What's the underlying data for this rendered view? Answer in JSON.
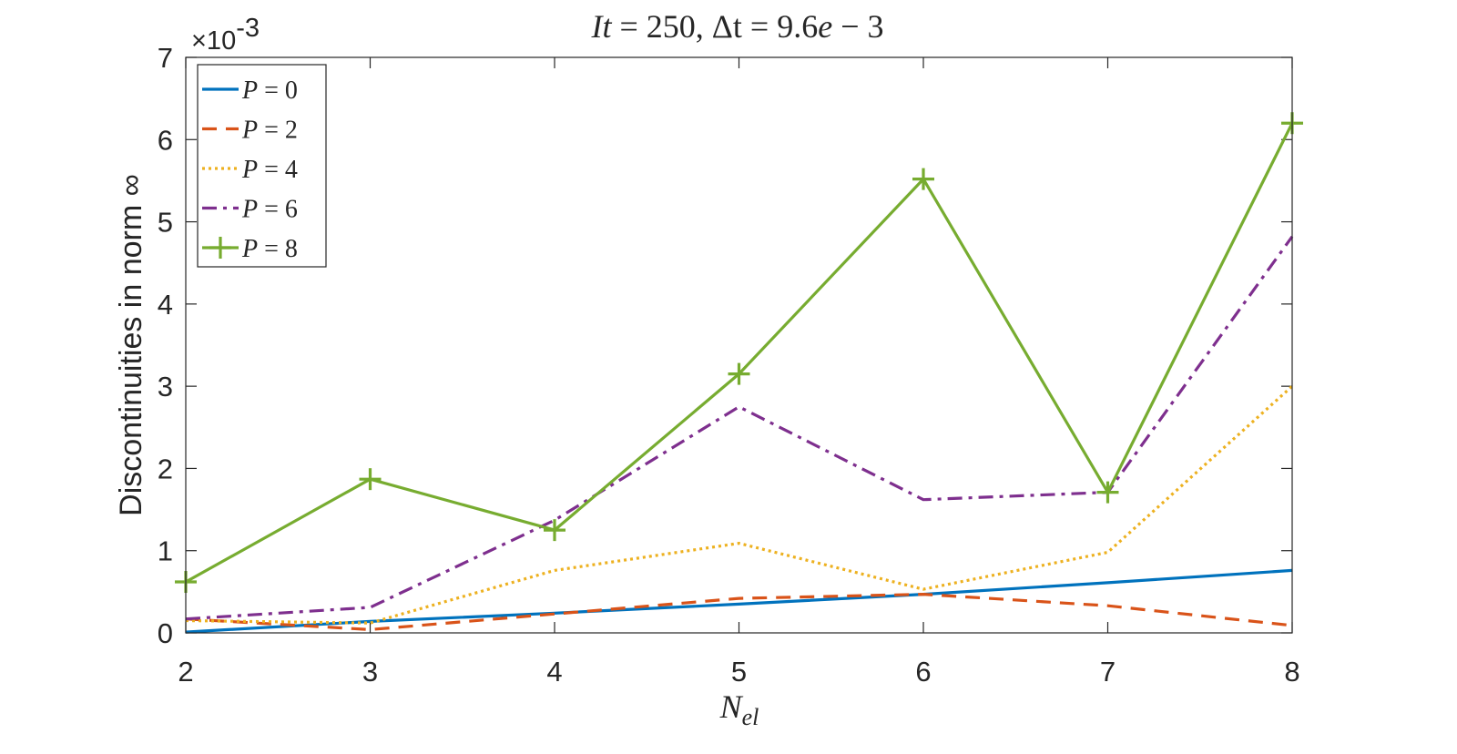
{
  "chart_data": {
    "type": "line",
    "title": {
      "part1_var": "It",
      "part1_eq": " = 250, ",
      "part2_var": "Δt",
      "part2_eq": " = 9.6",
      "part2_e": "e",
      "part2_tail": " − 3"
    },
    "xlabel": {
      "base": "N",
      "sub": "el"
    },
    "ylabel": "Discontinuities in norm ∞",
    "y_exponent": {
      "prefix": "×10",
      "power": "-3"
    },
    "xlim": [
      2,
      8
    ],
    "ylim": [
      0,
      7
    ],
    "x_ticks": [
      "2",
      "3",
      "4",
      "5",
      "6",
      "7",
      "8"
    ],
    "y_ticks": [
      "0",
      "1",
      "2",
      "3",
      "4",
      "5",
      "6",
      "7"
    ],
    "x": [
      2,
      3,
      4,
      5,
      6,
      7,
      8
    ],
    "y_scale": "1e-3",
    "grid": false,
    "legend_position": "top-left",
    "series": [
      {
        "name": "P = 0",
        "legend_var": "P",
        "legend_eq": " = 0",
        "color": "#0072BD",
        "dash": "solid",
        "marker": "none",
        "values": [
          0.01,
          0.14,
          0.24,
          0.35,
          0.47,
          0.61,
          0.76
        ]
      },
      {
        "name": "P = 2",
        "legend_var": "P",
        "legend_eq": " = 2",
        "color": "#D95319",
        "dash": "dashed",
        "marker": "none",
        "values": [
          0.17,
          0.04,
          0.23,
          0.42,
          0.47,
          0.33,
          0.09
        ]
      },
      {
        "name": "P = 4",
        "legend_var": "P",
        "legend_eq": " = 4",
        "color": "#EDB120",
        "dash": "dotted",
        "marker": "none",
        "values": [
          0.15,
          0.12,
          0.76,
          1.09,
          0.53,
          0.98,
          3.0
        ]
      },
      {
        "name": "P = 6",
        "legend_var": "P",
        "legend_eq": " = 6",
        "color": "#7E2F8E",
        "dash": "dashdot",
        "marker": "none",
        "values": [
          0.17,
          0.31,
          1.37,
          2.75,
          1.62,
          1.71,
          4.82
        ]
      },
      {
        "name": "P = 8",
        "legend_var": "P",
        "legend_eq": " = 8",
        "color": "#77AC30",
        "dash": "solid",
        "marker": "plus",
        "values": [
          0.62,
          1.87,
          1.25,
          3.15,
          5.52,
          1.71,
          6.2
        ]
      }
    ]
  }
}
